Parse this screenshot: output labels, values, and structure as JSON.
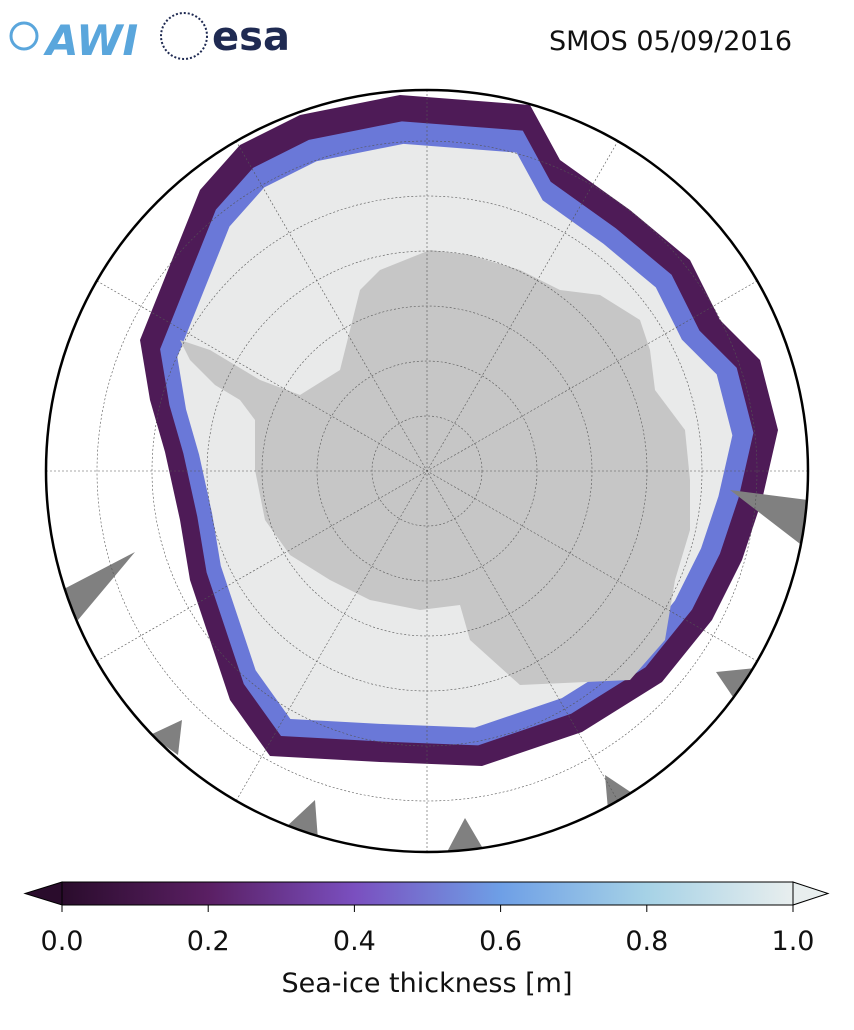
{
  "header": {
    "logos": [
      "AWI",
      "esa"
    ],
    "title": "SMOS 05/09/2016"
  },
  "colorbar": {
    "label": "Sea-ice thickness [m]",
    "lim": [
      0,
      1
    ],
    "ticks": [
      {
        "value": 0,
        "label": "0.0"
      },
      {
        "value": 0.2,
        "label": "0.2"
      },
      {
        "value": 0.4,
        "label": "0.4"
      },
      {
        "value": 0.6,
        "label": "0.6"
      },
      {
        "value": 0.8,
        "label": "0.8"
      },
      {
        "value": 1,
        "label": "1.0"
      }
    ],
    "colors": [
      "#2a0c2c",
      "#5a1f63",
      "#7a4fbf",
      "#6e9fe6",
      "#a6d2e6",
      "#e8eeee"
    ]
  }
}
